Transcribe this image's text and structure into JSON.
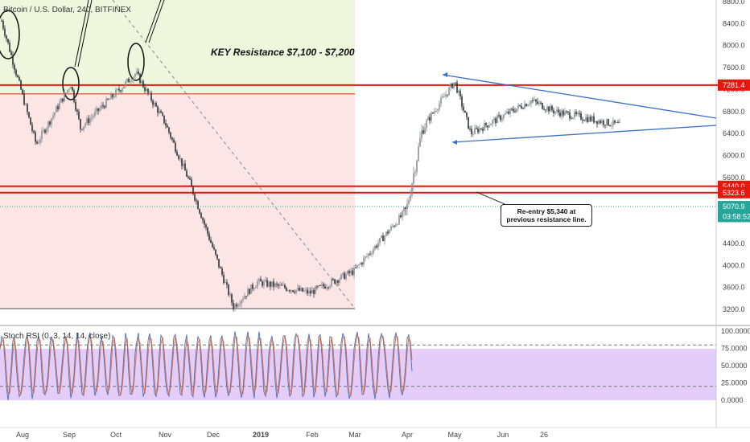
{
  "header": {
    "title": "Bitcoin / U.S. Dollar, 240, BITFINEX"
  },
  "annotations": {
    "key_resistance": "KEY Resistance $7,100 - $7,200",
    "reentry_note": "Re-entry $5,340 at previous resistance line."
  },
  "price_axis": {
    "ticks": [
      "8800.0",
      "8400.0",
      "8000.0",
      "7600.0",
      "7200.0",
      "6800.0",
      "6400.0",
      "6000.0",
      "5600.0",
      "4400.0",
      "4000.0",
      "3600.0",
      "3200.0"
    ],
    "tags": [
      {
        "label": "7281.4",
        "price": 7281.4,
        "color": "#e8170d"
      },
      {
        "label": "5440.0",
        "price": 5440.0,
        "color": "#e8170d"
      },
      {
        "label": "5323.6",
        "price": 5323.6,
        "color": "#e8170d"
      },
      {
        "label": "5070.9",
        "price": 5070.9,
        "color": "#26a69a"
      },
      {
        "label": "03:58:52",
        "price": 4890,
        "color": "#26a69a"
      }
    ]
  },
  "indicator": {
    "label": "Stoch RSI (0, 3, 14, 14, close)",
    "ticks": [
      "100.0000",
      "75.0000",
      "50.0000",
      "25.0000",
      "0.0000"
    ]
  },
  "time_axis": {
    "labels": [
      "Aug",
      "Sep",
      "Oct",
      "Nov",
      "Dec",
      "2019",
      "Feb",
      "Mar",
      "Apr",
      "May",
      "Jun",
      "26"
    ]
  },
  "chart_data": {
    "type": "candlestick",
    "symbol": "Bitcoin / U.S. Dollar",
    "interval": "240",
    "exchange": "BITFINEX",
    "price_range": [
      3200,
      8800
    ],
    "horizontal_levels": [
      7281.4,
      7100,
      5440.0,
      5323.6,
      5070.9
    ],
    "price_path": [
      {
        "t": "Jul-end",
        "price": 8450
      },
      {
        "t": "Aug-early",
        "price": 7400
      },
      {
        "t": "Aug-mid",
        "price": 6200
      },
      {
        "t": "Sep-early",
        "price": 7300
      },
      {
        "t": "Sep-mid",
        "price": 6500
      },
      {
        "t": "Oct-mid",
        "price": 7500
      },
      {
        "t": "Oct-end",
        "price": 6600
      },
      {
        "t": "Nov-mid",
        "price": 5500
      },
      {
        "t": "Dec-mid",
        "price": 3250
      },
      {
        "t": "2019-Jan",
        "price": 3700
      },
      {
        "t": "Feb",
        "price": 3500
      },
      {
        "t": "Mar",
        "price": 3900
      },
      {
        "t": "Apr-early",
        "price": 5000
      },
      {
        "t": "Apr-mid",
        "price": 6500
      },
      {
        "t": "May-early",
        "price": 7350
      },
      {
        "t": "May-mid",
        "price": 6400
      },
      {
        "t": "Jun",
        "price": 7000
      },
      {
        "t": "26",
        "price": 6800
      },
      {
        "t": "end",
        "price": 6550
      }
    ],
    "stoch_rsi": {
      "overbought": 80,
      "oversold": 20,
      "range": [
        0,
        100
      ]
    }
  }
}
